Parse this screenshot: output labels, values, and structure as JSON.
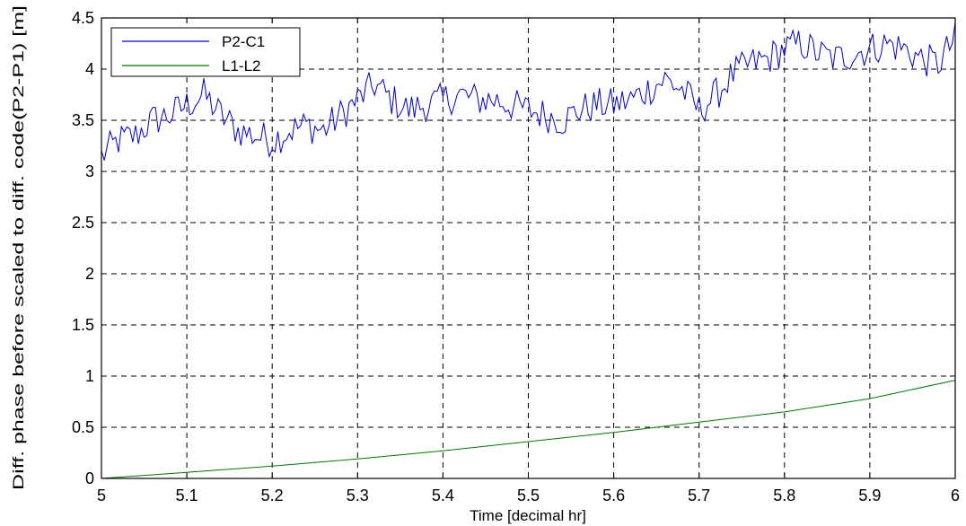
{
  "chart_data": {
    "type": "line",
    "title": "",
    "xlabel": "Time [decimal hr]",
    "ylabel": "Diff. phase before scaled to diff. code(P2-P1) [m]",
    "xlim": [
      5,
      6
    ],
    "ylim": [
      0,
      4.5
    ],
    "x_ticks": [
      "5",
      "5.1",
      "5.2",
      "5.3",
      "5.4",
      "5.5",
      "5.6",
      "5.7",
      "5.8",
      "5.9",
      "6"
    ],
    "y_ticks": [
      "0",
      "0.5",
      "1",
      "1.5",
      "2",
      "2.5",
      "3",
      "3.5",
      "4",
      "4.5"
    ],
    "grid": true,
    "legend_position": "top-left",
    "series": [
      {
        "name": "P2-C1",
        "color": "#0000cc",
        "x": [
          5.0,
          5.02,
          5.04,
          5.06,
          5.08,
          5.1,
          5.12,
          5.14,
          5.16,
          5.18,
          5.2,
          5.22,
          5.24,
          5.26,
          5.28,
          5.3,
          5.32,
          5.34,
          5.36,
          5.38,
          5.4,
          5.42,
          5.44,
          5.46,
          5.48,
          5.5,
          5.52,
          5.54,
          5.56,
          5.58,
          5.6,
          5.62,
          5.64,
          5.66,
          5.68,
          5.7,
          5.72,
          5.74,
          5.76,
          5.78,
          5.8,
          5.82,
          5.84,
          5.86,
          5.88,
          5.9,
          5.92,
          5.94,
          5.96,
          5.98,
          6.0
        ],
        "values": [
          3.15,
          3.3,
          3.35,
          3.5,
          3.55,
          3.65,
          3.75,
          3.55,
          3.4,
          3.35,
          3.3,
          3.4,
          3.45,
          3.4,
          3.55,
          3.7,
          3.85,
          3.7,
          3.6,
          3.65,
          3.7,
          3.75,
          3.7,
          3.7,
          3.65,
          3.6,
          3.55,
          3.5,
          3.6,
          3.65,
          3.65,
          3.7,
          3.8,
          3.9,
          3.8,
          3.6,
          3.75,
          3.95,
          4.05,
          4.1,
          4.2,
          4.25,
          4.15,
          4.1,
          4.15,
          4.2,
          4.25,
          4.2,
          4.1,
          4.05,
          4.3
        ]
      },
      {
        "name": "L1-L2",
        "color": "#007700",
        "x": [
          5.0,
          5.1,
          5.2,
          5.3,
          5.4,
          5.5,
          5.6,
          5.7,
          5.8,
          5.9,
          6.0
        ],
        "values": [
          0.0,
          0.06,
          0.12,
          0.19,
          0.27,
          0.36,
          0.45,
          0.55,
          0.65,
          0.78,
          0.96
        ]
      }
    ]
  }
}
